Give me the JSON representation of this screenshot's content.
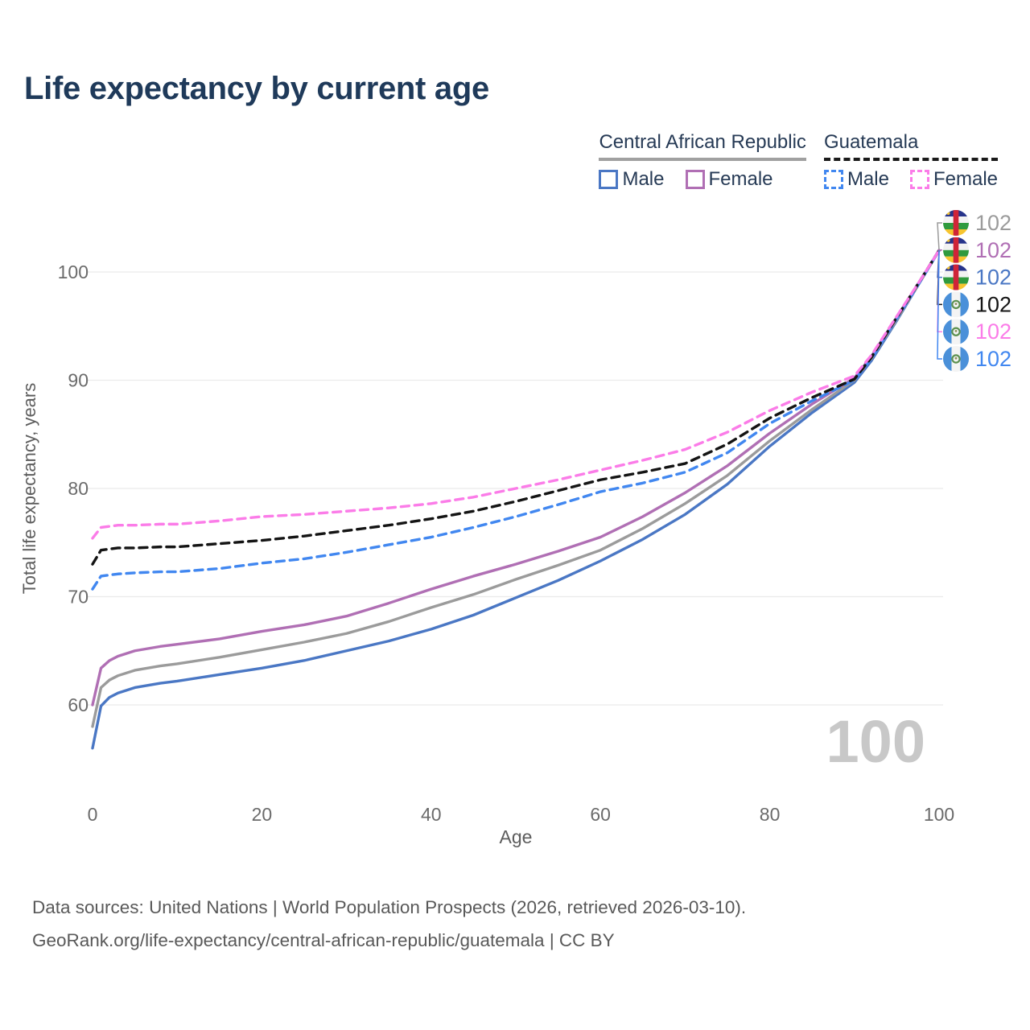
{
  "page": {
    "title": "Life expectancy by current age"
  },
  "colors": {
    "title_text": "#1f3a5a",
    "legend_text": "#263a55",
    "grid": "#ebebeb",
    "tick": "#6b6b6b",
    "axis": "#5d5d5d",
    "watermark": "#c8c8c8",
    "footer_text": "#595959",
    "car_underline": "#a0a0a0",
    "guatemala_underline": "#1a1a1a"
  },
  "legend": {
    "groups": [
      {
        "name": "Central African Republic",
        "line_style": "solid",
        "line_color": "#a0a0a0",
        "items": [
          {
            "label": "Male",
            "series": "car-male"
          },
          {
            "label": "Female",
            "series": "car-female"
          }
        ]
      },
      {
        "name": "Guatemala",
        "line_style": "dashed",
        "line_color": "#1a1a1a",
        "items": [
          {
            "label": "Male",
            "series": "gt-male"
          },
          {
            "label": "Female",
            "series": "gt-female"
          }
        ]
      }
    ]
  },
  "chart_data": {
    "type": "line",
    "title": "Life expectancy by current age",
    "xlabel": "Age",
    "ylabel": "Total life expectancy, years",
    "x_ticks": [
      0,
      20,
      40,
      60,
      80,
      100
    ],
    "y_ticks": [
      60,
      70,
      80,
      90,
      100
    ],
    "xlim": [
      0,
      100
    ],
    "ylim": [
      55,
      103
    ],
    "grid": "horizontal-only",
    "legend_position": "top-right",
    "watermark": "100",
    "x": [
      0,
      1,
      2,
      3,
      5,
      8,
      10,
      15,
      20,
      25,
      30,
      35,
      40,
      45,
      50,
      55,
      60,
      65,
      70,
      75,
      80,
      85,
      90,
      92,
      95,
      98,
      100
    ],
    "series": [
      {
        "id": "car-male",
        "name": "Central African Republic — Male",
        "country": "Central African Republic",
        "sex": "Male",
        "style": "solid",
        "color": "#4a77c4",
        "flag": "central-african-republic",
        "end_value": "102",
        "values": [
          56.0,
          59.9,
          60.7,
          61.1,
          61.6,
          62.0,
          62.2,
          62.8,
          63.4,
          64.1,
          65.0,
          65.9,
          67.0,
          68.3,
          69.9,
          71.5,
          73.3,
          75.3,
          77.6,
          80.4,
          83.9,
          87.0,
          89.8,
          91.8,
          95.5,
          99.4,
          102
        ]
      },
      {
        "id": "car-all",
        "name": "Central African Republic — Both sexes",
        "country": "Central African Republic",
        "sex": "All",
        "style": "solid",
        "color": "#9b9b9b",
        "flag": "central-african-republic",
        "end_value": "102",
        "values": [
          58.0,
          61.6,
          62.3,
          62.7,
          63.2,
          63.6,
          63.8,
          64.4,
          65.1,
          65.8,
          66.6,
          67.7,
          69.0,
          70.2,
          71.6,
          72.9,
          74.3,
          76.3,
          78.6,
          81.2,
          84.4,
          87.3,
          90.0,
          92.0,
          95.6,
          99.4,
          102
        ]
      },
      {
        "id": "car-female",
        "name": "Central African Republic — Female",
        "country": "Central African Republic",
        "sex": "Female",
        "style": "solid",
        "color": "#b06fb4",
        "flag": "central-african-republic",
        "end_value": "102",
        "values": [
          60.0,
          63.4,
          64.1,
          64.5,
          65.0,
          65.4,
          65.6,
          66.1,
          66.8,
          67.4,
          68.2,
          69.4,
          70.7,
          71.9,
          73.0,
          74.2,
          75.5,
          77.4,
          79.6,
          82.1,
          85.1,
          87.8,
          90.2,
          92.2,
          95.8,
          99.5,
          102
        ]
      },
      {
        "id": "gt-male",
        "name": "Guatemala — Male",
        "country": "Guatemala",
        "sex": "Male",
        "style": "dashed",
        "color": "#4187f0",
        "flag": "guatemala",
        "end_value": "102",
        "values": [
          70.7,
          71.9,
          72.0,
          72.1,
          72.2,
          72.3,
          72.3,
          72.6,
          73.1,
          73.5,
          74.1,
          74.8,
          75.5,
          76.4,
          77.4,
          78.5,
          79.7,
          80.5,
          81.5,
          83.3,
          86.0,
          88.1,
          90.0,
          92.0,
          95.7,
          99.4,
          102
        ]
      },
      {
        "id": "gt-all",
        "name": "Guatemala — Both sexes",
        "country": "Guatemala",
        "sex": "All",
        "style": "dashed",
        "color": "#141414",
        "flag": "guatemala",
        "end_value": "102",
        "values": [
          73.0,
          74.3,
          74.4,
          74.5,
          74.5,
          74.6,
          74.6,
          74.9,
          75.2,
          75.6,
          76.1,
          76.6,
          77.2,
          77.9,
          78.8,
          79.8,
          80.8,
          81.5,
          82.3,
          84.1,
          86.5,
          88.4,
          90.1,
          92.1,
          95.8,
          99.5,
          102
        ]
      },
      {
        "id": "gt-female",
        "name": "Guatemala — Female",
        "country": "Guatemala",
        "sex": "Female",
        "style": "dashed",
        "color": "#fb7ce8",
        "flag": "guatemala",
        "end_value": "102",
        "values": [
          75.4,
          76.4,
          76.5,
          76.6,
          76.6,
          76.7,
          76.7,
          77.0,
          77.4,
          77.6,
          77.9,
          78.2,
          78.6,
          79.2,
          80.0,
          80.8,
          81.7,
          82.6,
          83.6,
          85.2,
          87.2,
          88.9,
          90.4,
          92.3,
          95.9,
          99.5,
          102
        ]
      }
    ],
    "paint_order": [
      "car-male",
      "car-all",
      "car-female",
      "gt-male",
      "gt-all",
      "gt-female"
    ],
    "label_order": [
      "car-all",
      "car-female",
      "car-male",
      "gt-all",
      "gt-female",
      "gt-male"
    ]
  },
  "footer": {
    "line1": "Data sources: United Nations | World Population Prospects (2026, retrieved 2026-03-10).",
    "line2": "GeoRank.org/life-expectancy/central-african-republic/guatemala | CC BY"
  }
}
